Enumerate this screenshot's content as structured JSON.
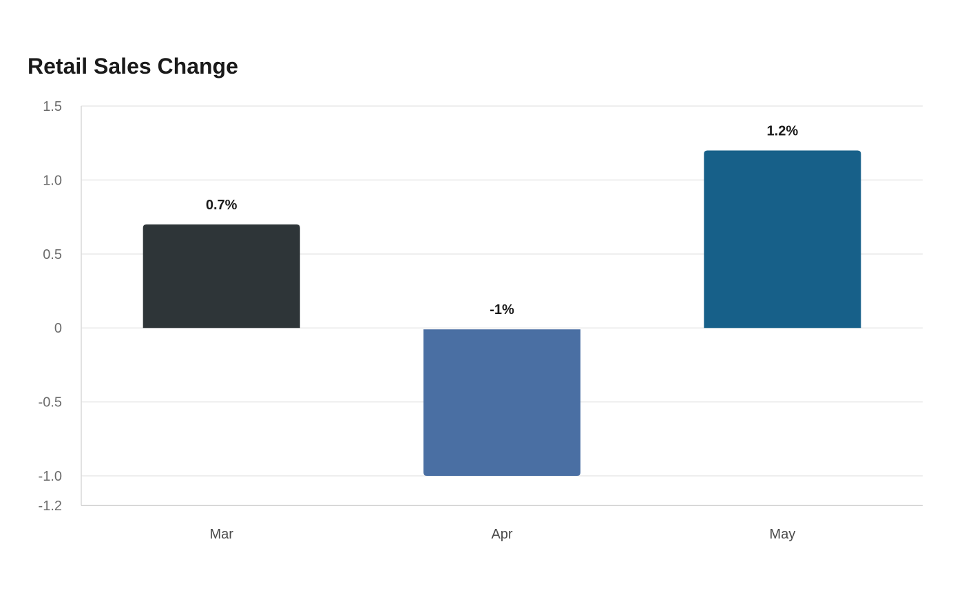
{
  "chart_data": {
    "type": "bar",
    "title": "Retail Sales Change",
    "xlabel": "",
    "ylabel": "",
    "categories": [
      "Mar",
      "Apr",
      "May"
    ],
    "values": [
      0.7,
      -1.0,
      1.2
    ],
    "value_labels": [
      "0.7%",
      "-1%",
      "1.2%"
    ],
    "bar_colors": [
      "#2e3538",
      "#4a6fa3",
      "#176089"
    ],
    "ylim": [
      -1.2,
      1.5
    ],
    "yticks": [
      1.5,
      1.0,
      0.5,
      0,
      -0.5,
      -1.0,
      -1.2
    ],
    "ytick_labels": [
      "1.5",
      "1.0",
      "0.5",
      "0",
      "-0.5",
      "-1.0",
      "-1.2"
    ],
    "grid": true,
    "legend": "none"
  }
}
